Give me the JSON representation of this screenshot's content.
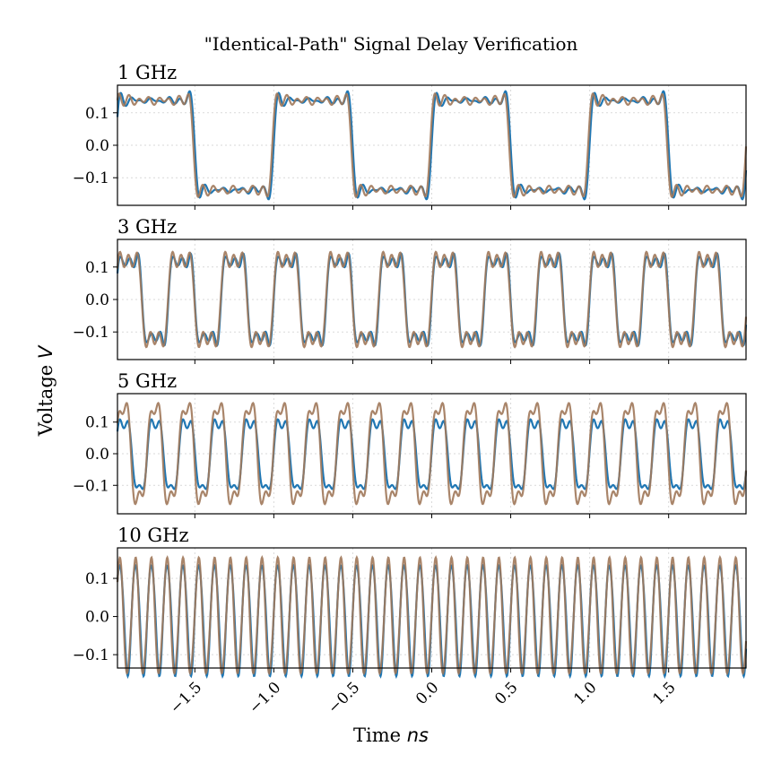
{
  "figure": {
    "title": "\"Identical-Path\" Signal Delay Verification",
    "xlabel_main": "Time ",
    "xlabel_unit": "ns",
    "ylabel_main": "Voltage ",
    "ylabel_unit": "V"
  },
  "colors": {
    "series_a": "#1f77b4",
    "series_b": "#a0785a",
    "grid": "#d9d9d9",
    "axes": "#000000"
  },
  "chart_data": [
    {
      "type": "line",
      "title": "1 GHz",
      "frequency_ghz": 1,
      "amplitude_v": [
        0.145,
        0.145
      ],
      "sample_waveform": {
        "x": [
          -2.0,
          -1.9,
          -1.8,
          -1.7,
          -1.6,
          -1.55,
          -1.5,
          -1.4,
          -1.3,
          -1.1,
          -1.05,
          -1.0,
          -0.9,
          -0.7,
          -0.6,
          -0.5
        ],
        "y": [
          0.0,
          0.14,
          0.15,
          0.14,
          0.13,
          -0.14,
          -0.12,
          -0.14,
          -0.15,
          -0.14,
          0.14,
          0.13,
          0.14,
          0.15,
          0.14,
          -0.14
        ]
      },
      "xlim": [
        -1.99,
        1.99
      ],
      "ylim": [
        -0.185,
        0.185
      ],
      "yticks": [
        -0.1,
        0.0,
        0.1
      ],
      "ytick_labels": [
        "−0.1",
        "0.0",
        "0.1"
      ],
      "grid": true
    },
    {
      "type": "line",
      "title": "3 GHz",
      "frequency_ghz": 3,
      "amplitude_v": [
        0.14,
        0.145
      ],
      "xlim": [
        -1.99,
        1.99
      ],
      "ylim": [
        -0.185,
        0.185
      ],
      "yticks": [
        -0.1,
        0.0,
        0.1
      ],
      "ytick_labels": [
        "−0.1",
        "0.0",
        "0.1"
      ],
      "grid": true
    },
    {
      "type": "line",
      "title": "5 GHz",
      "frequency_ghz": 5,
      "amplitude_v": [
        0.12,
        0.165
      ],
      "xlim": [
        -1.99,
        1.99
      ],
      "ylim": [
        -0.19,
        0.19
      ],
      "yticks": [
        -0.1,
        0.0,
        0.1
      ],
      "ytick_labels": [
        "−0.1",
        "0.0",
        "0.1"
      ],
      "grid": true
    },
    {
      "type": "line",
      "title": "10 GHz",
      "frequency_ghz": 10,
      "amplitude_v": [
        0.145,
        0.15
      ],
      "xlim": [
        -1.99,
        1.99
      ],
      "ylim": [
        -0.135,
        0.18
      ],
      "yticks": [
        -0.1,
        0.0,
        0.1
      ],
      "ytick_labels": [
        "−0.1",
        "0.0",
        "0.1"
      ],
      "xticks": [
        -1.5,
        -1.0,
        -0.5,
        0.0,
        0.5,
        1.0,
        1.5
      ],
      "xtick_labels": [
        "−1.5",
        "−1.0",
        "−0.5",
        "0.0",
        "0.5",
        "1.0",
        "1.5"
      ],
      "grid": true
    }
  ]
}
